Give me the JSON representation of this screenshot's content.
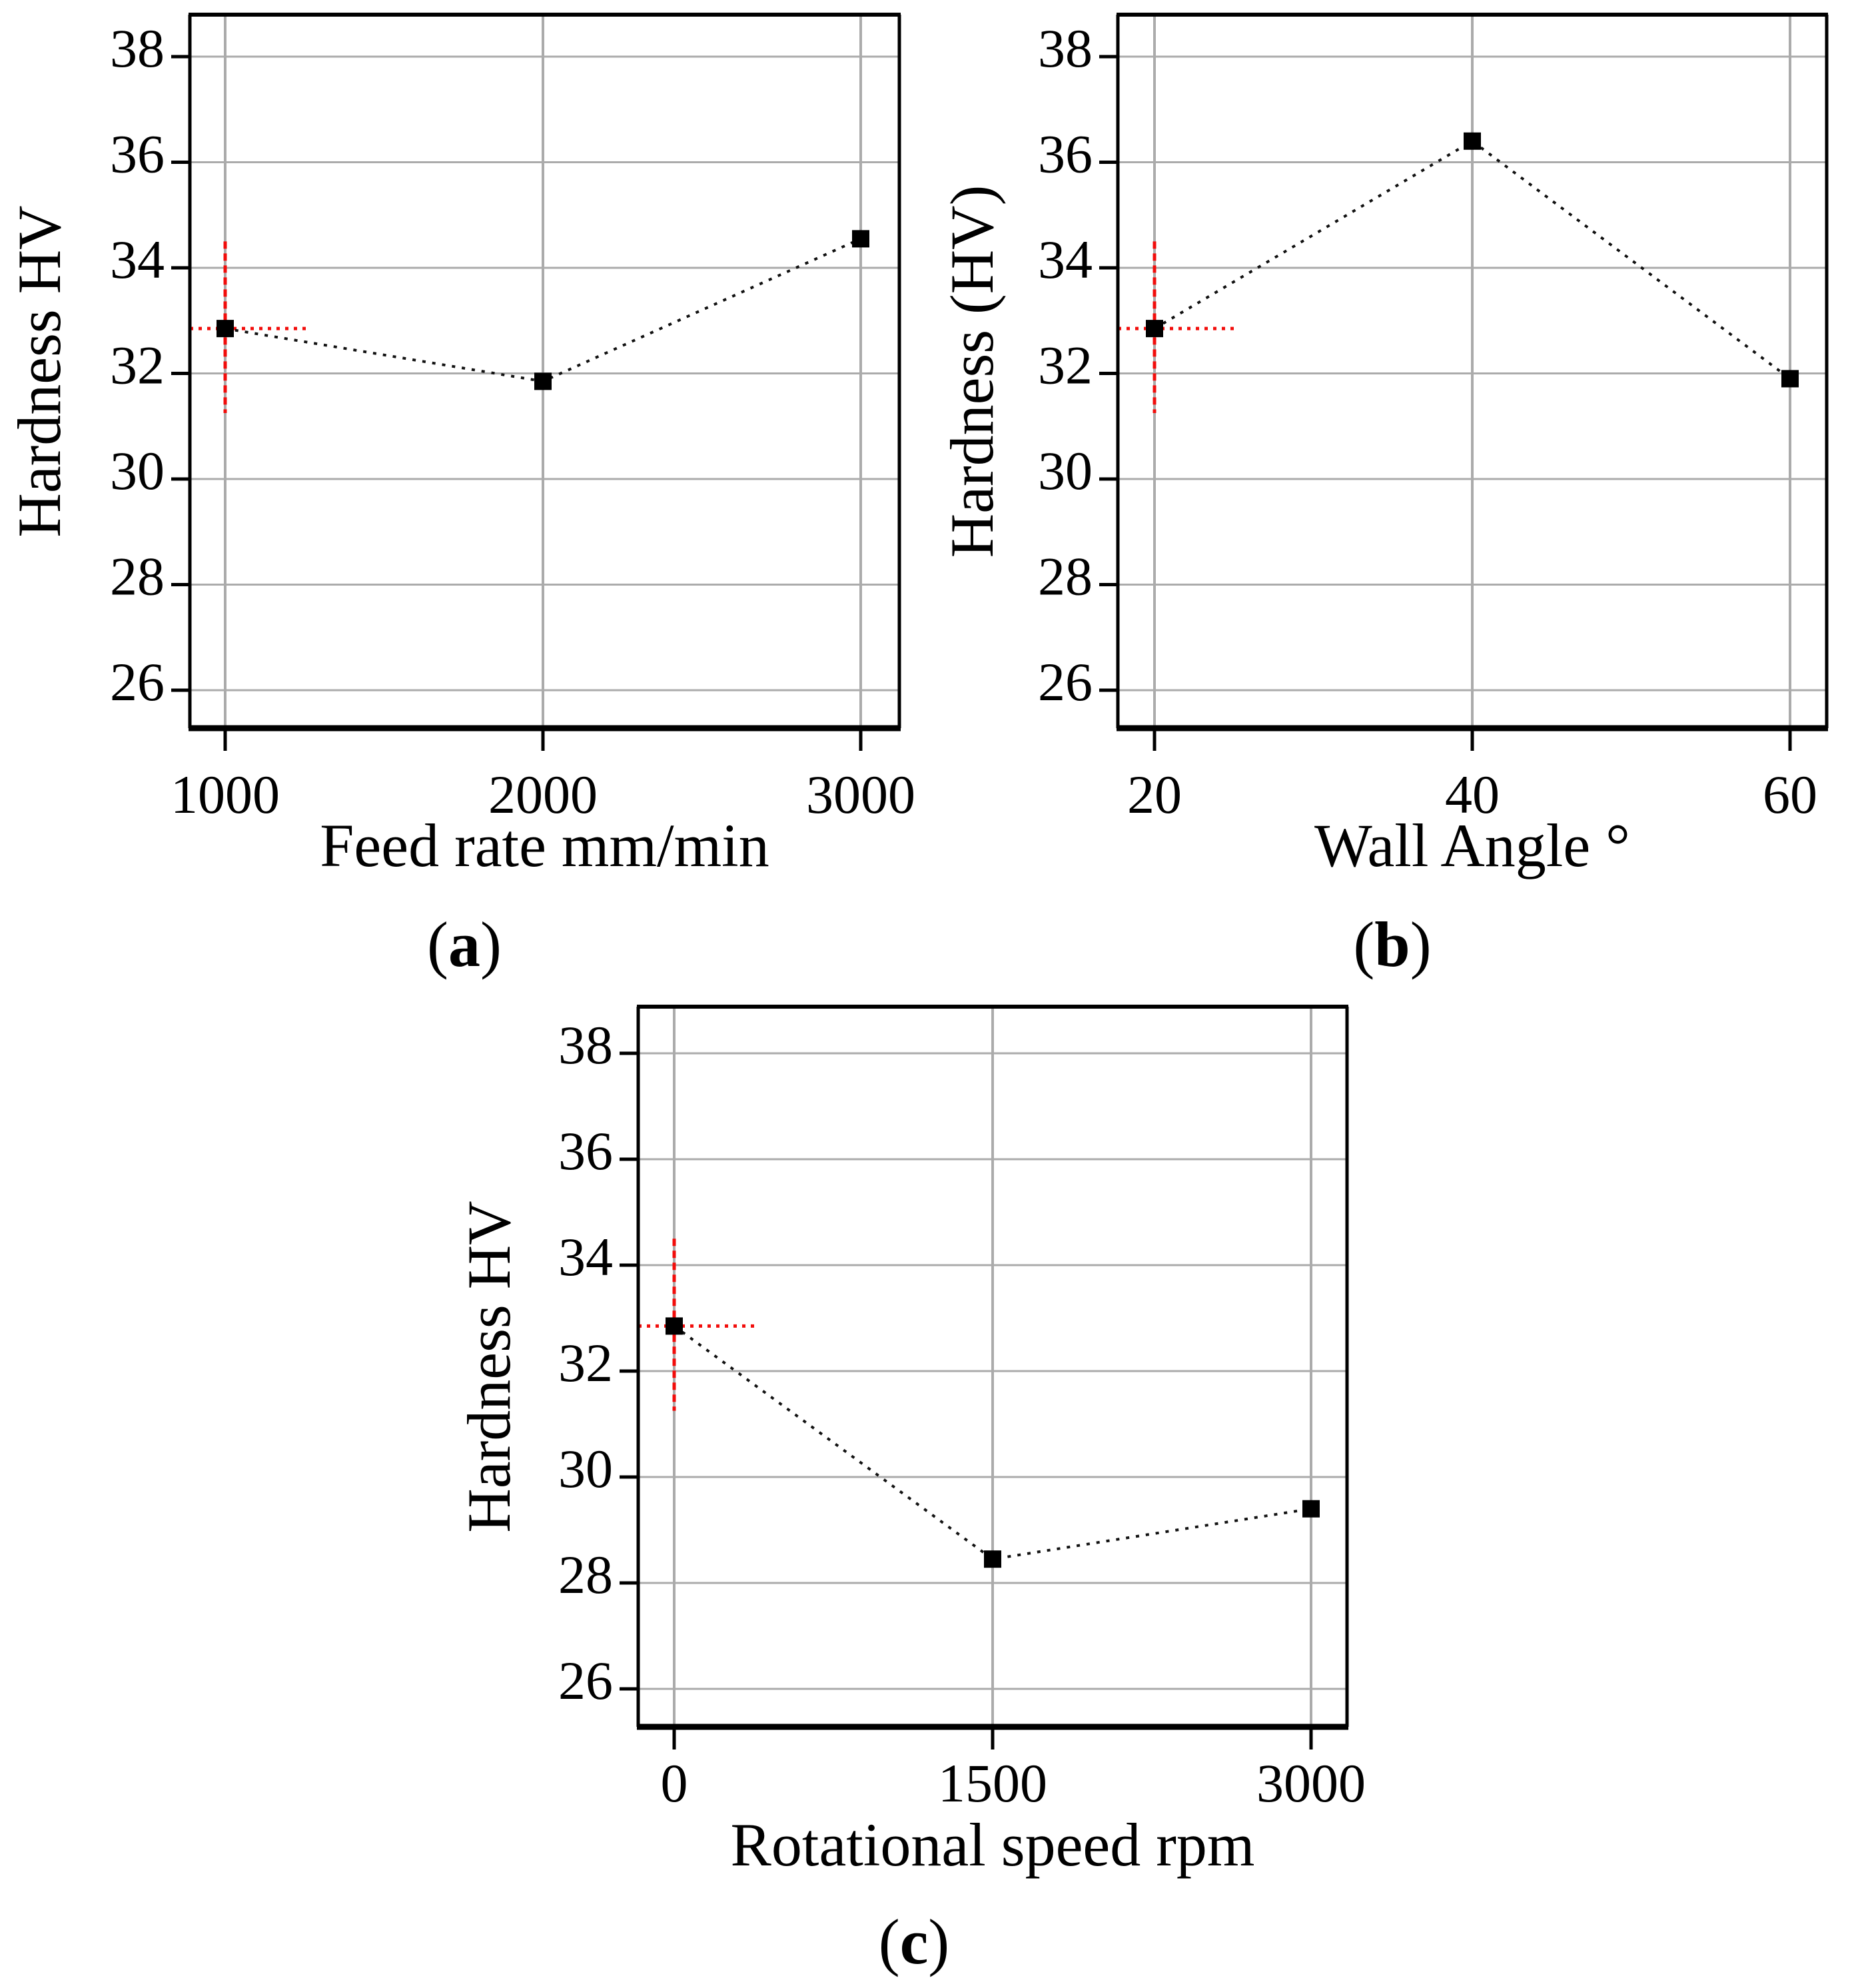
{
  "figure": {
    "background": "#ffffff",
    "panel_count": 3
  },
  "styles": {
    "grid_color": "#ababab",
    "axis_color": "#000000",
    "text_color": "#000000",
    "marker_color": "#000000",
    "connector_color": "#111111",
    "crosshair_color": "#f20d0b"
  },
  "chart_data": [
    {
      "type": "line",
      "panel": "a",
      "caption": "(a)",
      "caption_letter": "a",
      "xlabel": "Feed rate mm/min",
      "ylabel": "Hardness HV",
      "x": [
        1000,
        2000,
        3000
      ],
      "y": [
        32.85,
        31.85,
        34.55
      ],
      "xtick_labels": [
        "1000",
        "2000",
        "3000"
      ],
      "yticks": [
        38,
        36,
        34,
        32,
        30,
        28,
        26
      ],
      "ylim": [
        25.3,
        38.8
      ],
      "xlim": [
        890,
        3110
      ],
      "grid": true,
      "legend": false,
      "marker": "filled-square",
      "line_style": "dotted",
      "crosshair": {
        "x": 1000,
        "y": 32.85,
        "y_from": 31.25,
        "y_to": 34.5,
        "x_to": 1265
      }
    },
    {
      "type": "line",
      "panel": "b",
      "caption": "(b)",
      "caption_letter": "b",
      "xlabel": "Wall Angle °",
      "ylabel": "Hardness (HV)",
      "x": [
        20,
        40,
        60
      ],
      "y": [
        32.85,
        36.4,
        31.9
      ],
      "xtick_labels": [
        "20",
        "40",
        "60"
      ],
      "yticks": [
        38,
        36,
        34,
        32,
        30,
        28,
        26
      ],
      "ylim": [
        25.3,
        38.8
      ],
      "xlim": [
        17.7,
        62.3
      ],
      "grid": true,
      "legend": false,
      "marker": "filled-square",
      "line_style": "dotted",
      "crosshair": {
        "x": 20,
        "y": 32.85,
        "y_from": 31.25,
        "y_to": 34.5,
        "x_to": 25.3
      }
    },
    {
      "type": "line",
      "panel": "c",
      "caption": "(c)",
      "caption_letter": "c",
      "xlabel": "Rotational speed rpm",
      "ylabel": "Hardness HV",
      "x": [
        0,
        1500,
        3000
      ],
      "y": [
        32.85,
        28.45,
        29.4
      ],
      "xtick_labels": [
        "0",
        "1500",
        "3000"
      ],
      "yticks": [
        38,
        36,
        34,
        32,
        30,
        28,
        26
      ],
      "ylim": [
        25.3,
        38.8
      ],
      "xlim": [
        -170,
        3170
      ],
      "grid": true,
      "legend": false,
      "marker": "filled-square",
      "line_style": "dotted",
      "crosshair": {
        "x": 0,
        "y": 32.85,
        "y_from": 31.25,
        "y_to": 34.5,
        "x_to": 395
      }
    }
  ]
}
